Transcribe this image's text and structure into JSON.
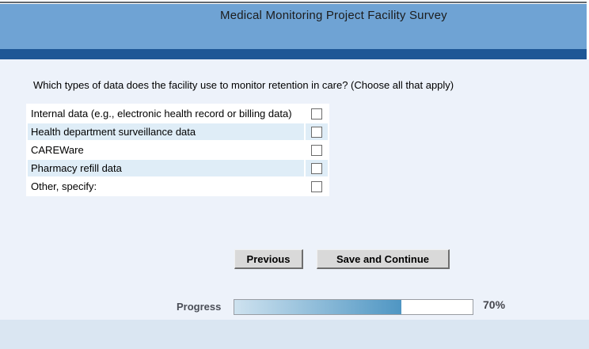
{
  "header": {
    "title": "Medical Monitoring Project Facility Survey"
  },
  "question": {
    "text": "Which types of data does the facility use to monitor retention in care? (Choose all that apply)"
  },
  "options": [
    {
      "label": "Internal data (e.g., electronic health record or billing data)",
      "checked": false
    },
    {
      "label": "Health department surveillance data",
      "checked": false
    },
    {
      "label": "CAREWare",
      "checked": false
    },
    {
      "label": "Pharmacy refill data",
      "checked": false
    },
    {
      "label": "Other, specify:",
      "checked": false
    }
  ],
  "buttons": {
    "previous": "Previous",
    "save_and_continue": "Save and Continue"
  },
  "progress": {
    "label": "Progress",
    "percent": 70,
    "percent_label": "70%"
  },
  "colors": {
    "header_blue": "#6FA3D4",
    "nav_stripe_blue": "#1E5796",
    "page_background": "#EDF2FA",
    "footer_band": "#DAE6F2",
    "row_alternate": "#DFEDF7",
    "checkbox_border": "#6B6B6B",
    "progress_fill_start": "#CEE2EF",
    "progress_fill_end": "#4F96C3"
  }
}
